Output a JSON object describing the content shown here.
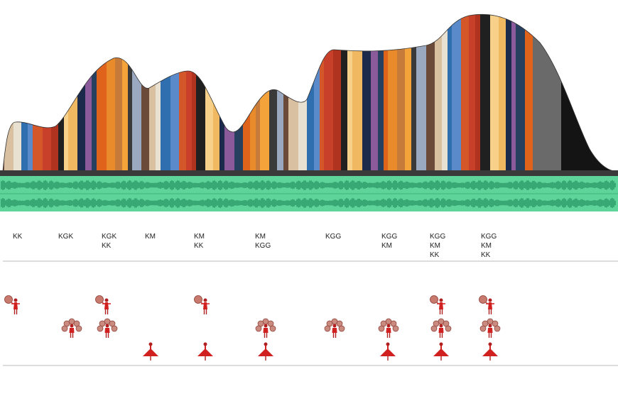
{
  "columns": [
    {
      "labels": [
        "KK"
      ]
    },
    {
      "labels": [
        "KGK"
      ]
    },
    {
      "labels": [
        "KGK",
        "KK"
      ]
    },
    {
      "labels": [
        "KM"
      ]
    },
    {
      "labels": [
        "KM",
        "KK"
      ]
    },
    {
      "labels": [
        "KM",
        "KGG"
      ]
    },
    {
      "labels": [
        "KGG"
      ]
    },
    {
      "labels": [
        "KGG",
        "KM"
      ]
    },
    {
      "labels": [
        "KGG",
        "KM",
        "KK"
      ]
    },
    {
      "labels": [
        "KGG",
        "KM",
        "KK"
      ]
    }
  ]
}
